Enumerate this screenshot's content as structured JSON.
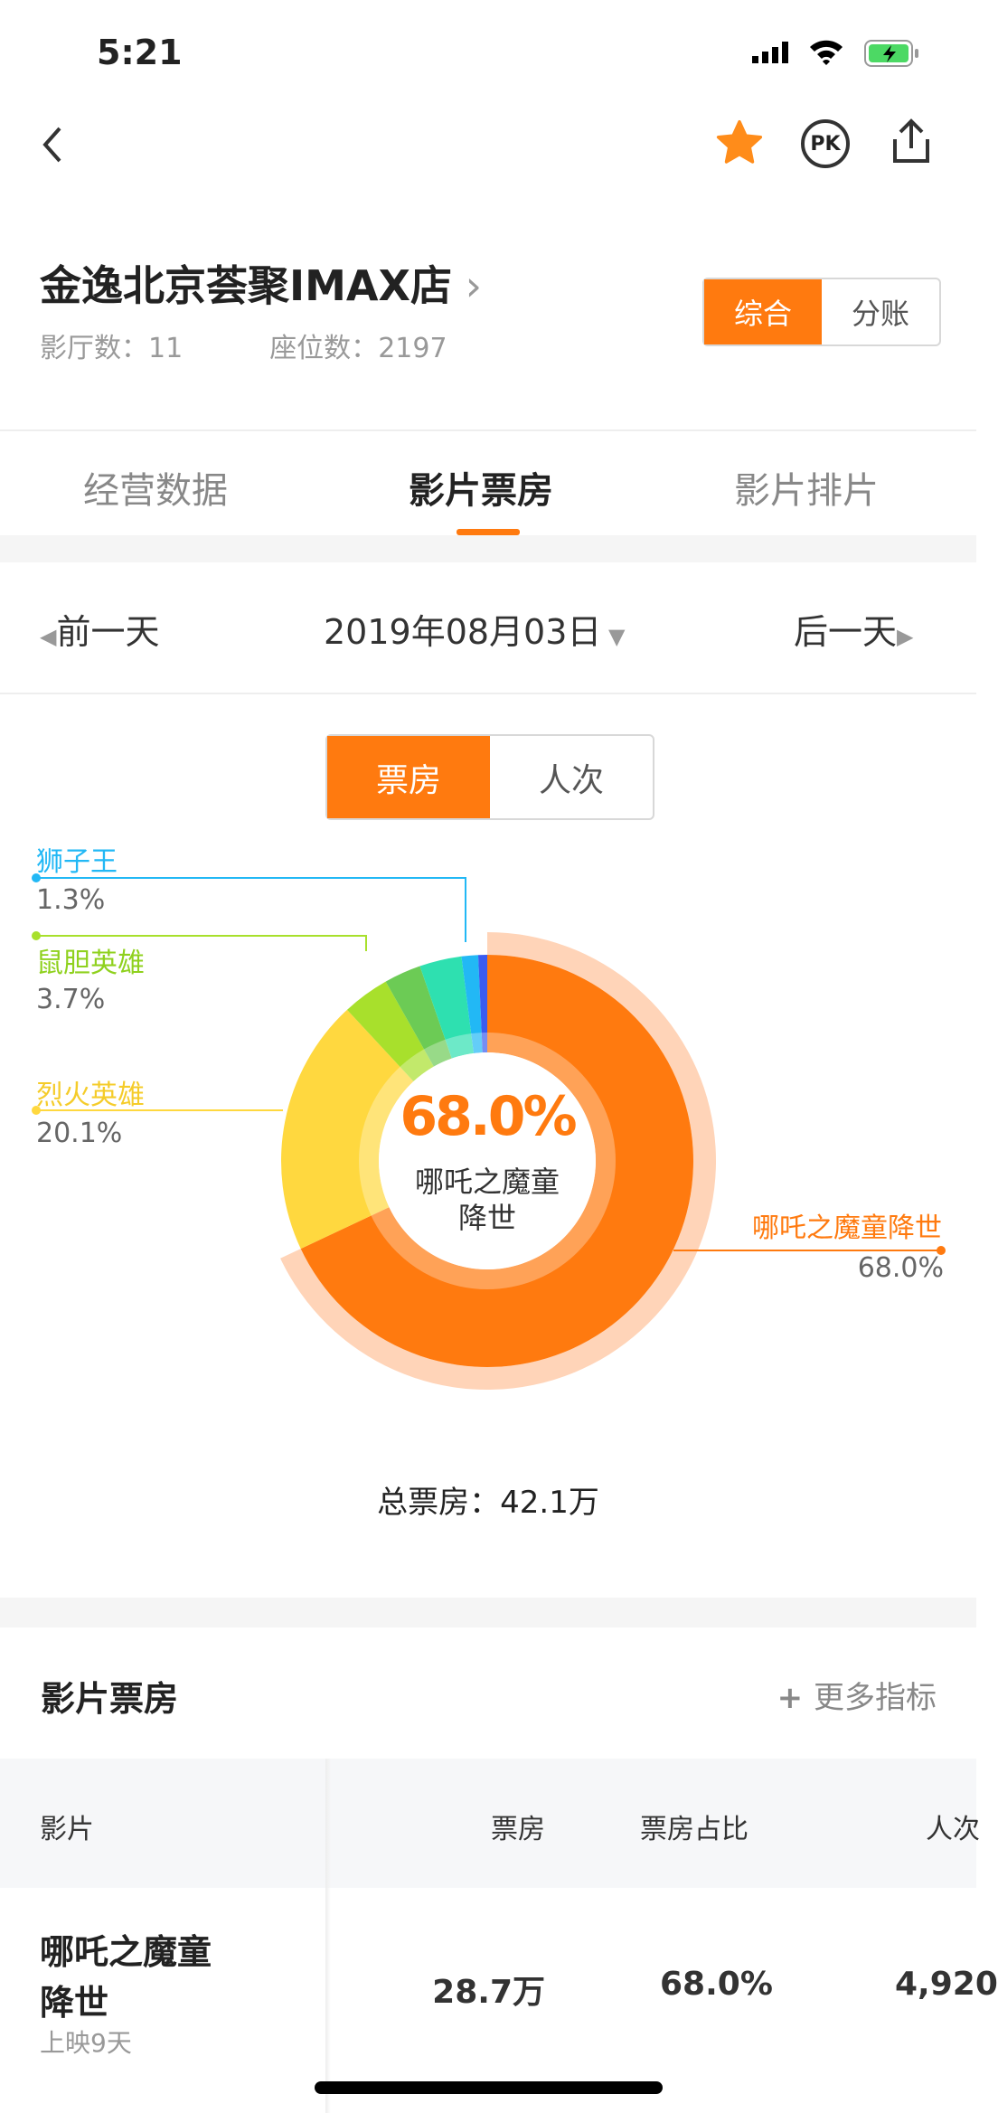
{
  "status": {
    "time": "5:21"
  },
  "nav": {
    "icons": [
      "back-icon",
      "star-icon",
      "pk-icon",
      "share-icon"
    ],
    "pk": "PK"
  },
  "cinema": {
    "name": "金逸北京荟聚IMAX店",
    "halls_label": "影厅数：",
    "halls": "11",
    "seats_label": "座位数：",
    "seats": "2197",
    "mode_options": [
      "综合",
      "分账"
    ],
    "mode_selected": "综合"
  },
  "tabs": [
    {
      "label": "经营数据"
    },
    {
      "label": "影片票房",
      "active": true
    },
    {
      "label": "影片排片"
    }
  ],
  "date_nav": {
    "prev": "前一天",
    "date": "2019年08月03日",
    "next": "后一天"
  },
  "metric_toggle": {
    "options": [
      "票房",
      "人次"
    ],
    "selected": "票房"
  },
  "chart_data": {
    "type": "pie",
    "style": "donut",
    "highlighted": "哪吒之魔童降世",
    "center": {
      "value": "68.0%",
      "label": "哪吒之魔童降世",
      "label_line1": "哪吒之魔童",
      "label_line2": "降世"
    },
    "slices": [
      {
        "name": "哪吒之魔童降世",
        "value": 68.0,
        "label": "68.0%",
        "color": "#ff7a0f"
      },
      {
        "name": "烈火英雄",
        "value": 20.1,
        "label": "20.1%",
        "color": "#ffd83f"
      },
      {
        "name": "鼠胆英雄",
        "value": 3.7,
        "label": "3.7%",
        "color": "#a8e02c"
      },
      {
        "value": 2.9,
        "color": "#6ccb55"
      },
      {
        "value": 3.3,
        "color": "#2ee0b0"
      },
      {
        "name": "狮子王",
        "value": 1.3,
        "label": "1.3%",
        "color": "#22b8f5"
      },
      {
        "value": 0.7,
        "color": "#3a5cf0"
      }
    ]
  },
  "total": {
    "label": "总票房：",
    "value": "42.1万"
  },
  "section": {
    "title": "影片票房",
    "more": "更多指标"
  },
  "table": {
    "columns": [
      "影片",
      "票房",
      "票房占比",
      "人次"
    ],
    "rows": [
      {
        "film_line1": "哪吒之魔童",
        "film_line2": "降世",
        "days": "上映9天",
        "box": "28.7万",
        "share": "68.0%",
        "admissions": "4,920"
      }
    ]
  },
  "colors": {
    "accent": "#ff7a0f"
  }
}
